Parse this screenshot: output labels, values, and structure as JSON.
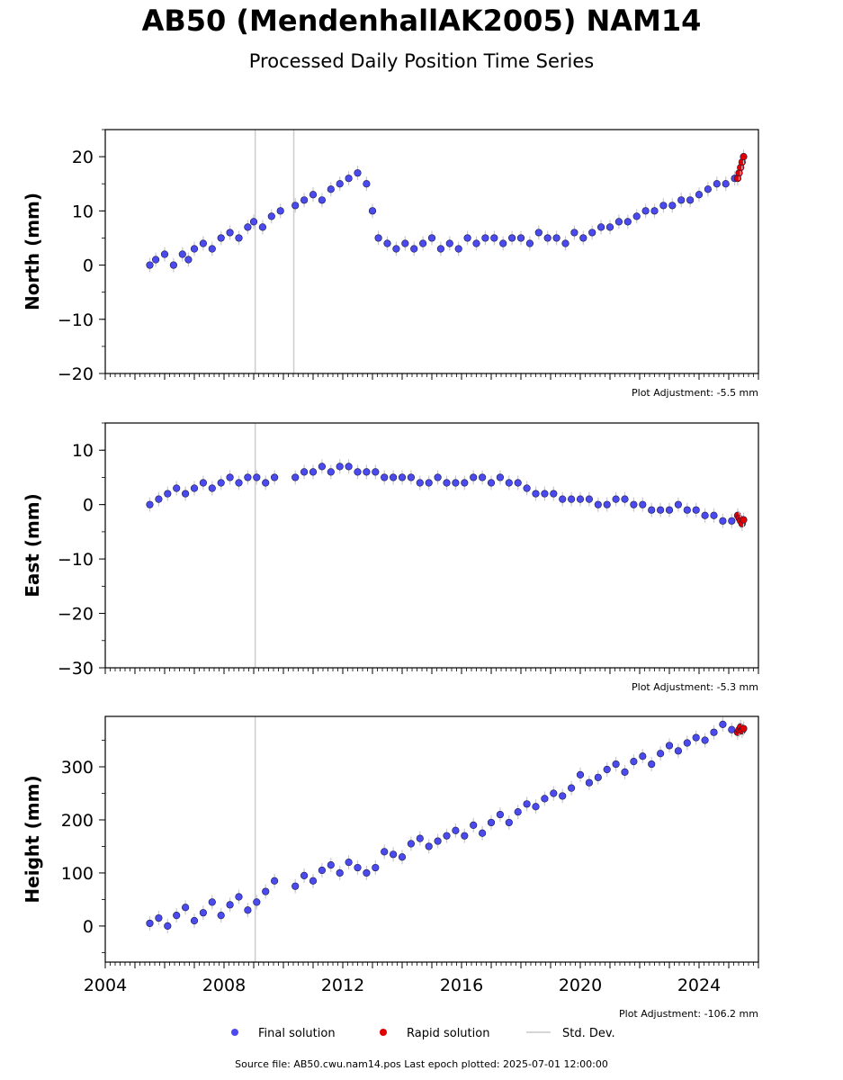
{
  "title": "AB50 (MendenhallAK2005) NAM14",
  "subtitle": "Processed Daily Position Time Series",
  "source_text": "Source file: AB50.cwu.nam14.pos  Last epoch plotted: 2025-07-01 12:00:00",
  "legend": {
    "final": "Final solution",
    "rapid": "Rapid solution",
    "stddev": "Std. Dev."
  },
  "colors": {
    "final": "#4a4aee",
    "final_edge": "#1a1a4a",
    "rapid": "#e00000",
    "stddev": "#c8c8c8",
    "vline": "#cccccc"
  },
  "chart_data": [
    {
      "type": "scatter",
      "ylabel": "North (mm)",
      "adjustment": "Plot Adjustment: -5.5 mm",
      "ylim": [
        -20,
        25
      ],
      "yticks": [
        -20,
        -10,
        0,
        10,
        20
      ],
      "ytick_labels": [
        "−20",
        "−10",
        "0",
        "10",
        "20"
      ],
      "xlim": [
        2004.0,
        2026.0
      ],
      "vlines": [
        2009.05,
        2010.35
      ],
      "series": [
        {
          "name": "Final solution",
          "x": [
            2005.5,
            2005.7,
            2006.0,
            2006.3,
            2006.6,
            2006.8,
            2007.0,
            2007.3,
            2007.6,
            2007.9,
            2008.2,
            2008.5,
            2008.8,
            2009.0,
            2009.3,
            2009.6,
            2009.9,
            2010.4,
            2010.7,
            2011.0,
            2011.3,
            2011.6,
            2011.9,
            2012.2,
            2012.5,
            2012.8,
            2013.0,
            2013.2,
            2013.5,
            2013.8,
            2014.1,
            2014.4,
            2014.7,
            2015.0,
            2015.3,
            2015.6,
            2015.9,
            2016.2,
            2016.5,
            2016.8,
            2017.1,
            2017.4,
            2017.7,
            2018.0,
            2018.3,
            2018.6,
            2018.9,
            2019.2,
            2019.5,
            2019.8,
            2020.1,
            2020.4,
            2020.7,
            2021.0,
            2021.3,
            2021.6,
            2021.9,
            2022.2,
            2022.5,
            2022.8,
            2023.1,
            2023.4,
            2023.7,
            2024.0,
            2024.3,
            2024.6,
            2024.9,
            2025.2
          ],
          "y": [
            0,
            1,
            2,
            0,
            2,
            1,
            3,
            4,
            3,
            5,
            6,
            5,
            7,
            8,
            7,
            9,
            10,
            11,
            12,
            13,
            12,
            14,
            15,
            16,
            17,
            15,
            10,
            5,
            4,
            3,
            4,
            3,
            4,
            5,
            3,
            4,
            3,
            5,
            4,
            5,
            5,
            4,
            5,
            5,
            4,
            6,
            5,
            5,
            4,
            6,
            5,
            6,
            7,
            7,
            8,
            8,
            9,
            10,
            10,
            11,
            11,
            12,
            12,
            13,
            14,
            15,
            15,
            16
          ]
        },
        {
          "name": "Rapid solution",
          "x": [
            2025.3,
            2025.35,
            2025.4,
            2025.45,
            2025.5
          ],
          "y": [
            16,
            17,
            18,
            19,
            20
          ]
        }
      ]
    },
    {
      "type": "scatter",
      "ylabel": "East (mm)",
      "adjustment": "Plot Adjustment: -5.3 mm",
      "ylim": [
        -30,
        15
      ],
      "yticks": [
        -30,
        -20,
        -10,
        0,
        10
      ],
      "ytick_labels": [
        "−30",
        "−20",
        "−10",
        "0",
        "10"
      ],
      "xlim": [
        2004.0,
        2026.0
      ],
      "vlines": [
        2009.05
      ],
      "series": [
        {
          "name": "Final solution",
          "x": [
            2005.5,
            2005.8,
            2006.1,
            2006.4,
            2006.7,
            2007.0,
            2007.3,
            2007.6,
            2007.9,
            2008.2,
            2008.5,
            2008.8,
            2009.1,
            2009.4,
            2009.7,
            2010.4,
            2010.7,
            2011.0,
            2011.3,
            2011.6,
            2011.9,
            2012.2,
            2012.5,
            2012.8,
            2013.1,
            2013.4,
            2013.7,
            2014.0,
            2014.3,
            2014.6,
            2014.9,
            2015.2,
            2015.5,
            2015.8,
            2016.1,
            2016.4,
            2016.7,
            2017.0,
            2017.3,
            2017.6,
            2017.9,
            2018.2,
            2018.5,
            2018.8,
            2019.1,
            2019.4,
            2019.7,
            2020.0,
            2020.3,
            2020.6,
            2020.9,
            2021.2,
            2021.5,
            2021.8,
            2022.1,
            2022.4,
            2022.7,
            2023.0,
            2023.3,
            2023.6,
            2023.9,
            2024.2,
            2024.5,
            2024.8,
            2025.1
          ],
          "y": [
            0,
            1,
            2,
            3,
            2,
            3,
            4,
            3,
            4,
            5,
            4,
            5,
            5,
            4,
            5,
            5,
            6,
            6,
            7,
            6,
            7,
            7,
            6,
            6,
            6,
            5,
            5,
            5,
            5,
            4,
            4,
            5,
            4,
            4,
            4,
            5,
            5,
            4,
            5,
            4,
            4,
            3,
            2,
            2,
            2,
            1,
            1,
            1,
            1,
            0,
            0,
            1,
            1,
            0,
            0,
            -1,
            -1,
            -1,
            0,
            -1,
            -1,
            -2,
            -2,
            -3,
            -3
          ]
        },
        {
          "name": "Rapid solution",
          "x": [
            2025.3,
            2025.35,
            2025.4,
            2025.45,
            2025.5
          ],
          "y": [
            -2,
            -2.5,
            -3,
            -3.5,
            -2.8
          ]
        }
      ]
    },
    {
      "type": "scatter",
      "ylabel": "Height (mm)",
      "adjustment": "Plot Adjustment: -106.2 mm",
      "ylim": [
        -68,
        395
      ],
      "yticks": [
        0,
        100,
        200,
        300
      ],
      "ytick_labels": [
        "0",
        "100",
        "200",
        "300"
      ],
      "xlim": [
        2004.0,
        2026.0
      ],
      "xticks": [
        2004,
        2008,
        2012,
        2016,
        2020,
        2024
      ],
      "xtick_labels": [
        "2004",
        "2008",
        "2012",
        "2016",
        "2020",
        "2024"
      ],
      "vlines": [
        2009.05
      ],
      "series": [
        {
          "name": "Final solution",
          "x": [
            2005.5,
            2005.8,
            2006.1,
            2006.4,
            2006.7,
            2007.0,
            2007.3,
            2007.6,
            2007.9,
            2008.2,
            2008.5,
            2008.8,
            2009.1,
            2009.4,
            2009.7,
            2010.4,
            2010.7,
            2011.0,
            2011.3,
            2011.6,
            2011.9,
            2012.2,
            2012.5,
            2012.8,
            2013.1,
            2013.4,
            2013.7,
            2014.0,
            2014.3,
            2014.6,
            2014.9,
            2015.2,
            2015.5,
            2015.8,
            2016.1,
            2016.4,
            2016.7,
            2017.0,
            2017.3,
            2017.6,
            2017.9,
            2018.2,
            2018.5,
            2018.8,
            2019.1,
            2019.4,
            2019.7,
            2020.0,
            2020.3,
            2020.6,
            2020.9,
            2021.2,
            2021.5,
            2021.8,
            2022.1,
            2022.4,
            2022.7,
            2023.0,
            2023.3,
            2023.6,
            2023.9,
            2024.2,
            2024.5,
            2024.8,
            2025.1
          ],
          "y": [
            5,
            15,
            0,
            20,
            35,
            10,
            25,
            45,
            20,
            40,
            55,
            30,
            45,
            65,
            85,
            75,
            95,
            85,
            105,
            115,
            100,
            120,
            110,
            100,
            110,
            140,
            135,
            130,
            155,
            165,
            150,
            160,
            170,
            180,
            170,
            190,
            175,
            195,
            210,
            195,
            215,
            230,
            225,
            240,
            250,
            245,
            260,
            285,
            270,
            280,
            295,
            305,
            290,
            310,
            320,
            305,
            325,
            340,
            330,
            345,
            355,
            350,
            365,
            380,
            370
          ]
        },
        {
          "name": "Rapid solution",
          "x": [
            2025.3,
            2025.35,
            2025.4,
            2025.45,
            2025.5
          ],
          "y": [
            365,
            370,
            375,
            368,
            372
          ]
        }
      ]
    }
  ]
}
